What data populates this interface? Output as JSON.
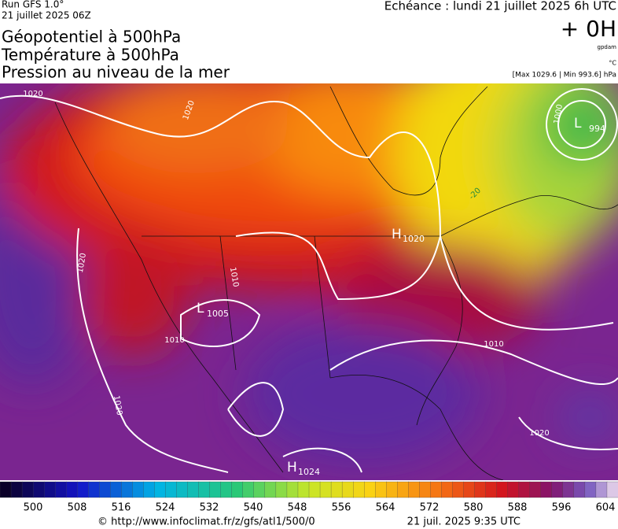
{
  "header": {
    "run": "Run GFS 1.0°",
    "date": "21 juillet 2025 06Z",
    "echeance": "Echéance : lundi 21 juillet 2025 6h UTC",
    "offset": "+ 0H",
    "unit_gpdam": "gpdam",
    "unit_c": "°C",
    "range": "[Max 1029.6 | Min 993.6] hPa"
  },
  "titles": [
    "Géopotentiel à 500hPa",
    "Température à 500hPa",
    "Pression au niveau de la mer"
  ],
  "map": {
    "centers": [
      {
        "letter": "H",
        "value": 1020
      },
      {
        "letter": "L",
        "value": 1005
      },
      {
        "letter": "L",
        "value": 994
      },
      {
        "letter": "H",
        "value": 1024
      }
    ],
    "isobar_labels": [
      1020,
      1020,
      1020,
      1020,
      1010,
      1010,
      1010,
      1020,
      1000
    ],
    "isotherm_labels": [
      -20
    ]
  },
  "colorbar": {
    "ticks": [
      500,
      508,
      516,
      524,
      532,
      540,
      548,
      556,
      564,
      572,
      580,
      588,
      596,
      604
    ]
  },
  "footer": {
    "url": "© http://www.infoclimat.fr/z/gfs/atl1/500/0",
    "timestamp": "21 juil. 2025  9:35 UTC"
  }
}
